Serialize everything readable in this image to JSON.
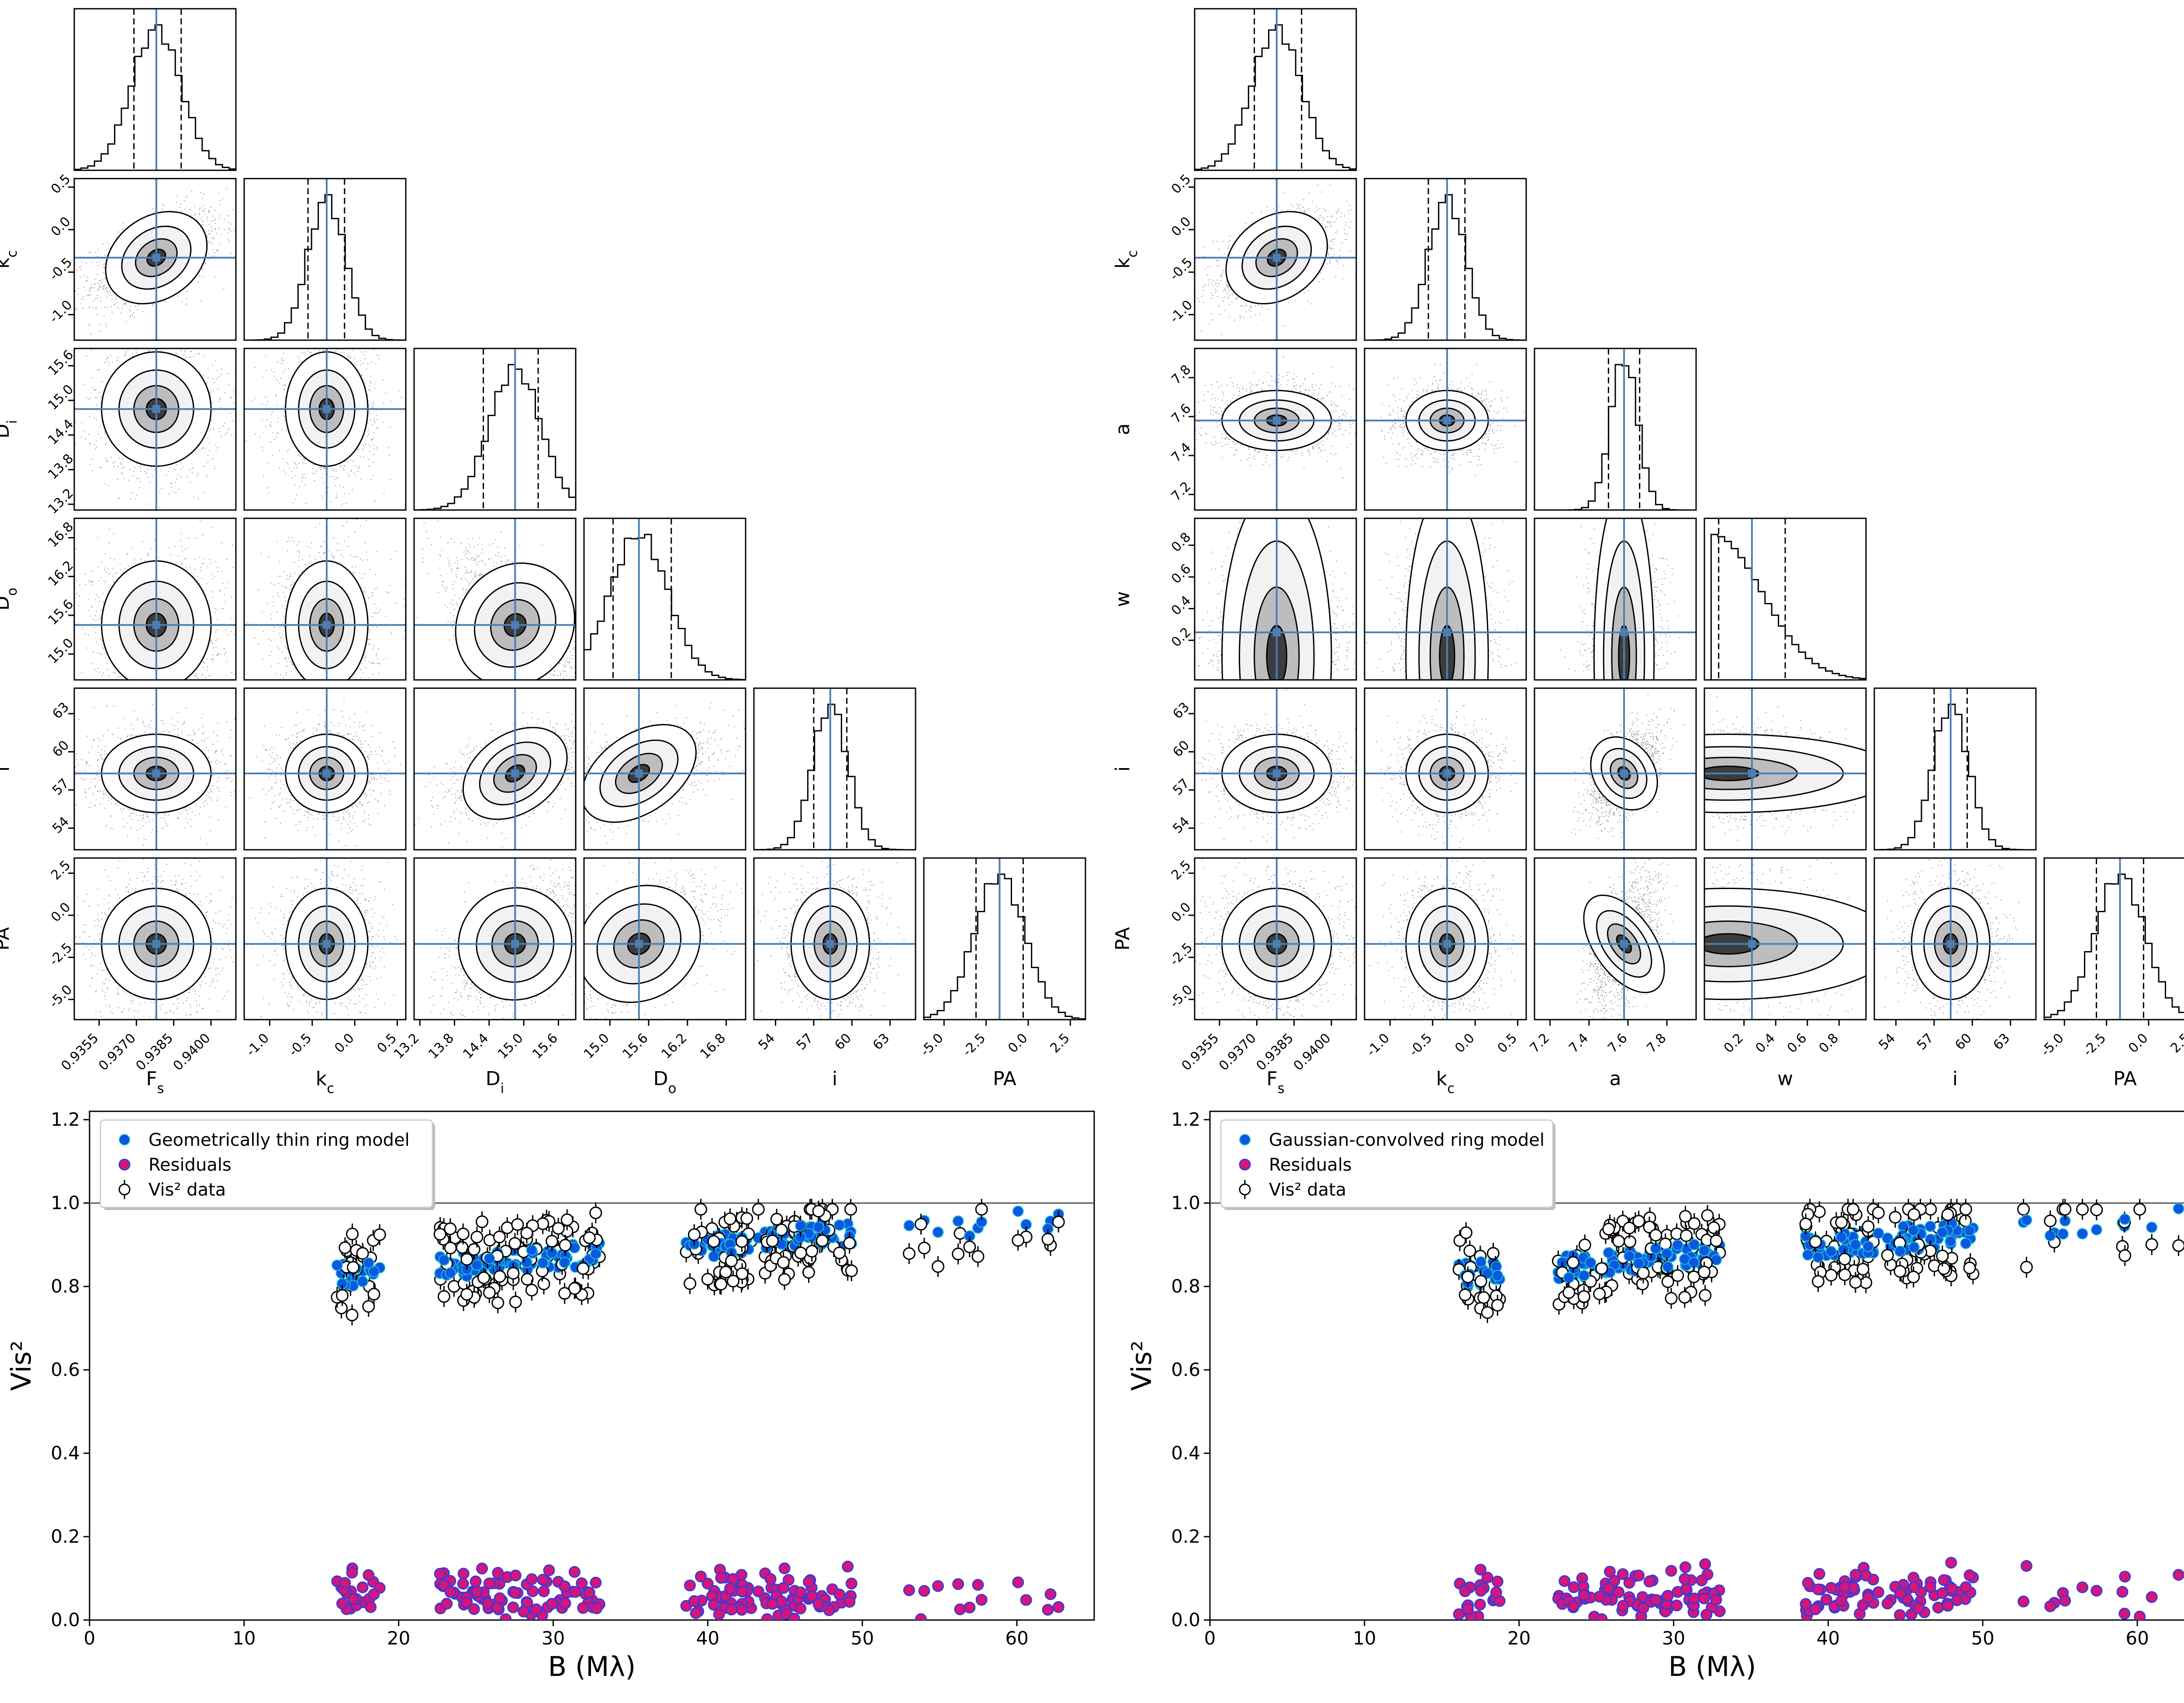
{
  "panels": [
    {
      "name": "thin-ring",
      "corner": {
        "params": [
          "F$s",
          "k$c",
          "D$i",
          "D$o",
          "i",
          "PA"
        ],
        "bottom_labels": [
          {
            "base": "F",
            "sub": "s"
          },
          {
            "base": "k",
            "sub": "c"
          },
          {
            "base": "D",
            "sub": "i"
          },
          {
            "base": "D",
            "sub": "o"
          },
          {
            "base": "i",
            "sub": ""
          },
          {
            "base": "PA",
            "sub": ""
          }
        ],
        "left_labels": [
          {
            "base": "k",
            "sub": "c"
          },
          {
            "base": "D",
            "sub": "i"
          },
          {
            "base": "D",
            "sub": "o"
          },
          {
            "base": "i",
            "sub": ""
          },
          {
            "base": "PA",
            "sub": ""
          }
        ],
        "ranges": [
          [
            0.9345,
            0.941
          ],
          [
            -1.3,
            0.6
          ],
          [
            13.1,
            15.9
          ],
          [
            14.6,
            17.1
          ],
          [
            52.3,
            65.0
          ],
          [
            -6.2,
            3.4
          ]
        ],
        "ticks": [
          [
            "0.9355",
            "0.9370",
            "0.9385",
            "0.9400"
          ],
          [
            "-1.0",
            "-0.5",
            "0.0",
            "0.5"
          ],
          [
            "13.2",
            "13.8",
            "14.4",
            "15.0",
            "15.6"
          ],
          [
            "15.0",
            "15.6",
            "16.2",
            "16.8"
          ],
          [
            "54",
            "57",
            "60",
            "63"
          ],
          [
            "-5.0",
            "-2.5",
            "0.0",
            "2.5"
          ]
        ],
        "truth": [
          0.9378,
          -0.33,
          14.85,
          15.45,
          58.3,
          -1.7
        ],
        "medians": [
          0.9378,
          -0.33,
          14.85,
          15.45,
          58.3,
          -1.7
        ],
        "quantiles": [
          [
            0.9369,
            0.9388
          ],
          [
            -0.55,
            -0.12
          ],
          [
            14.3,
            15.25
          ],
          [
            15.05,
            15.95
          ],
          [
            57.0,
            59.6
          ],
          [
            -3.1,
            -0.3
          ]
        ],
        "sigmas": [
          0.001,
          0.22,
          0.45,
          0.45,
          1.4,
          1.5
        ]
      },
      "vis": {
        "chart_data": {
          "type": "scatter",
          "xlabel": "B (Mλ)",
          "ylabel": "Vis²",
          "xlim": [
            0,
            65
          ],
          "ylim": [
            0,
            1.22
          ],
          "xticks": [
            "0",
            "10",
            "20",
            "30",
            "40",
            "50",
            "60"
          ],
          "yticks": [
            "0.0",
            "0.2",
            "0.4",
            "0.6",
            "0.8",
            "1.0",
            "1.2"
          ],
          "reference_line": 1.0,
          "series": [
            {
              "name": "Geometrically thin ring model",
              "color": "#0a57e0"
            },
            {
              "name": "Residuals",
              "color": "#d6157a"
            },
            {
              "name": "Vis² data",
              "color": "#ffffff"
            }
          ]
        }
      }
    },
    {
      "name": "gaussian-ring",
      "corner": {
        "params": [
          "F$s",
          "k$c",
          "a",
          "w",
          "i",
          "PA"
        ],
        "bottom_labels": [
          {
            "base": "F",
            "sub": "s"
          },
          {
            "base": "k",
            "sub": "c"
          },
          {
            "base": "a",
            "sub": ""
          },
          {
            "base": "w",
            "sub": ""
          },
          {
            "base": "i",
            "sub": ""
          },
          {
            "base": "PA",
            "sub": ""
          }
        ],
        "left_labels": [
          {
            "base": "k",
            "sub": "c"
          },
          {
            "base": "a",
            "sub": ""
          },
          {
            "base": "w",
            "sub": ""
          },
          {
            "base": "i",
            "sub": ""
          },
          {
            "base": "PA",
            "sub": ""
          }
        ],
        "ranges": [
          [
            0.9345,
            0.941
          ],
          [
            -1.3,
            0.6
          ],
          [
            7.12,
            7.95
          ],
          [
            -0.05,
            0.97
          ],
          [
            52.3,
            65.0
          ],
          [
            -6.2,
            3.4
          ]
        ],
        "ticks": [
          [
            "0.9355",
            "0.9370",
            "0.9385",
            "0.9400"
          ],
          [
            "-1.0",
            "-0.5",
            "0.0",
            "0.5"
          ],
          [
            "7.2",
            "7.4",
            "7.6",
            "7.8"
          ],
          [
            "0.2",
            "0.4",
            "0.6",
            "0.8"
          ],
          [
            "54",
            "57",
            "60",
            "63"
          ],
          [
            "-5.0",
            "-2.5",
            "0.0",
            "2.5"
          ]
        ],
        "truth": [
          0.9378,
          -0.33,
          7.58,
          0.25,
          58.3,
          -1.7
        ],
        "medians": [
          0.9378,
          -0.33,
          7.58,
          0.25,
          58.3,
          -1.7
        ],
        "quantiles": [
          [
            0.9369,
            0.9388
          ],
          [
            -0.55,
            -0.12
          ],
          [
            7.5,
            7.66
          ],
          [
            0.04,
            0.46
          ],
          [
            57.0,
            59.6
          ],
          [
            -3.1,
            -0.3
          ]
        ],
        "sigmas": [
          0.001,
          0.22,
          0.07,
          0.22,
          1.4,
          1.5
        ]
      },
      "vis": {
        "chart_data": {
          "type": "scatter",
          "xlabel": "B (Mλ)",
          "ylabel": "Vis²",
          "xlim": [
            0,
            65
          ],
          "ylim": [
            0,
            1.22
          ],
          "xticks": [
            "0",
            "10",
            "20",
            "30",
            "40",
            "50",
            "60"
          ],
          "yticks": [
            "0.0",
            "0.2",
            "0.4",
            "0.6",
            "0.8",
            "1.0",
            "1.2"
          ],
          "reference_line": 1.0,
          "series": [
            {
              "name": "Gaussian-convolved ring model",
              "color": "#0a57e0"
            },
            {
              "name": "Residuals",
              "color": "#d6157a"
            },
            {
              "name": "Vis² data",
              "color": "#ffffff"
            }
          ]
        }
      }
    }
  ],
  "colors": {
    "truth": "#4a7fb5",
    "contour": "#000000",
    "hist": "#000000"
  }
}
